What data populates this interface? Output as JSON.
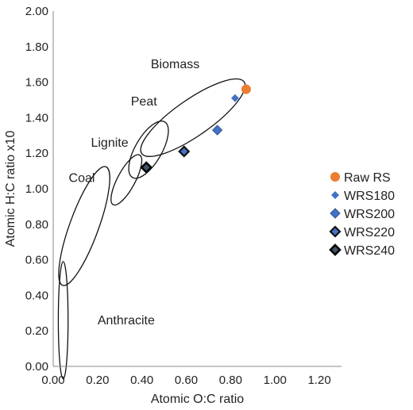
{
  "chart_data": {
    "type": "scatter",
    "title": "",
    "xlabel": "Atomic O:C ratio",
    "ylabel": "Atomic H:C ratio x10",
    "xlim": [
      0,
      1.3
    ],
    "ylim": [
      0,
      2.0
    ],
    "x_ticks": [
      "0.00",
      "0.20",
      "0.40",
      "0.60",
      "0.80",
      "1.00",
      "1.20"
    ],
    "y_ticks": [
      "0.00",
      "0.20",
      "0.40",
      "0.60",
      "0.80",
      "1.00",
      "1.20",
      "1.40",
      "1.60",
      "1.80",
      "2.00"
    ],
    "grid": false,
    "legend_position": "right",
    "series": [
      {
        "name": "Raw RS",
        "marker": "circle",
        "color": "#ED7D31",
        "points": [
          [
            0.87,
            1.56
          ]
        ]
      },
      {
        "name": "WRS180",
        "marker": "diamond-small",
        "color": "#4472C4",
        "points": [
          [
            0.82,
            1.51
          ]
        ]
      },
      {
        "name": "WRS200",
        "marker": "diamond",
        "color": "#4472C4",
        "points": [
          [
            0.74,
            1.33
          ]
        ]
      },
      {
        "name": "WRS220",
        "marker": "diamond-dark",
        "color": "#1F3864",
        "points": [
          [
            0.59,
            1.21
          ]
        ]
      },
      {
        "name": "WRS240",
        "marker": "diamond-black",
        "color": "#111111",
        "points": [
          [
            0.42,
            1.12
          ]
        ]
      }
    ],
    "regions": [
      {
        "label": "Biomass",
        "center": [
          0.63,
          1.4
        ],
        "rx": 0.282,
        "ry": 0.082,
        "angle": 35,
        "label_at": [
          0.44,
          1.7
        ]
      },
      {
        "label": "Peat",
        "center": [
          0.43,
          1.22
        ],
        "rx": 0.145,
        "ry": 0.06,
        "angle": 60,
        "label_at": [
          0.35,
          1.49
        ]
      },
      {
        "label": "Lignite",
        "center": [
          0.33,
          1.05
        ],
        "rx": 0.127,
        "ry": 0.04,
        "angle": 62,
        "label_at": [
          0.17,
          1.26
        ]
      },
      {
        "label": "Coal",
        "center": [
          0.14,
          0.79
        ],
        "rx": 0.285,
        "ry": 0.065,
        "angle": 70,
        "label_at": [
          0.07,
          1.06
        ]
      },
      {
        "label": "Anthracite",
        "center": [
          0.045,
          0.26
        ],
        "rx": 0.022,
        "ry": 0.265,
        "angle": 0,
        "label_at": [
          0.2,
          0.26
        ]
      }
    ]
  }
}
